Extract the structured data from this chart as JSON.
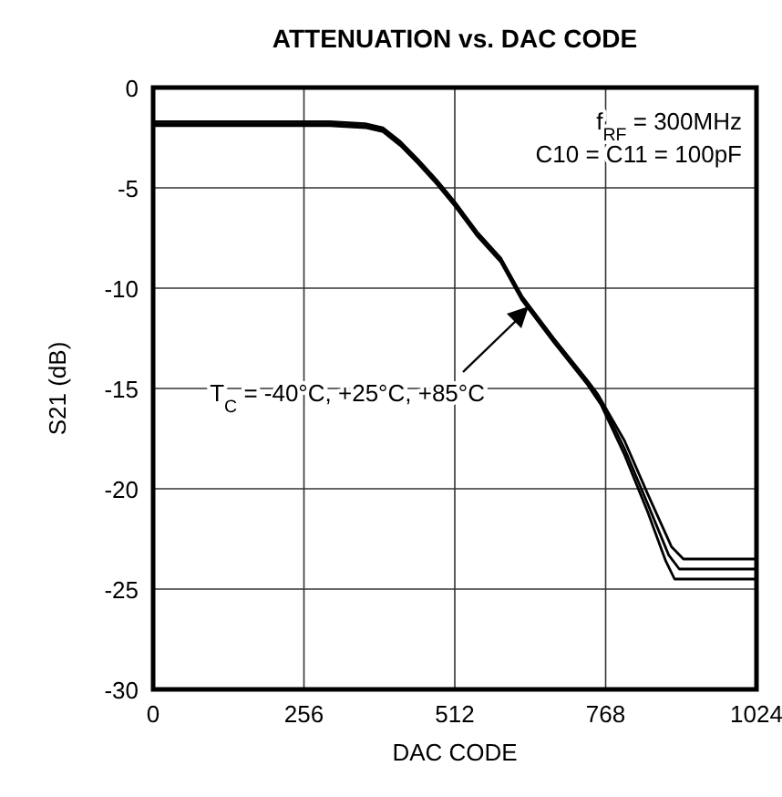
{
  "chart_data": {
    "type": "line",
    "title": "ATTENUATION vs. DAC CODE",
    "xlabel": "DAC CODE",
    "ylabel": "S21 (dB)",
    "xlim": [
      0,
      1024
    ],
    "xticks": [
      0,
      256,
      512,
      768,
      1024
    ],
    "ylim": [
      -30,
      0
    ],
    "yticks": [
      0,
      -5,
      -10,
      -15,
      -20,
      -25,
      -30
    ],
    "grid": true,
    "marker": "none",
    "line_style": "solid",
    "annotations": [
      "f$_{RF}$ = 300MHz",
      "C10 = C11 = 100pF",
      "T$_{C}$ = -40°C, +25°C, +85°C"
    ],
    "series": [
      {
        "color": "#000000",
        "x": [
          0,
          100,
          200,
          300,
          360,
          390,
          420,
          450,
          481,
          512,
          550,
          590,
          626,
          680,
          737,
          760,
          800,
          840,
          870,
          885,
          950,
          1024
        ],
        "values": [
          -1.9,
          -1.9,
          -1.9,
          -1.9,
          -2.0,
          -2.2,
          -2.9,
          -3.8,
          -4.8,
          -5.9,
          -7.4,
          -8.7,
          -10.6,
          -12.7,
          -14.8,
          -15.8,
          -18.3,
          -21.2,
          -23.6,
          -24.5,
          -24.5,
          -24.5
        ]
      },
      {
        "color": "#000000",
        "x": [
          0,
          100,
          200,
          300,
          360,
          390,
          420,
          450,
          481,
          512,
          550,
          590,
          626,
          680,
          737,
          760,
          800,
          840,
          875,
          893,
          950,
          1024
        ],
        "values": [
          -1.8,
          -1.8,
          -1.8,
          -1.8,
          -1.9,
          -2.1,
          -2.8,
          -3.7,
          -4.7,
          -5.8,
          -7.3,
          -8.6,
          -10.5,
          -12.6,
          -14.7,
          -15.6,
          -18.0,
          -20.8,
          -23.3,
          -24.0,
          -24.0,
          -24.0
        ]
      },
      {
        "color": "#000000",
        "x": [
          0,
          100,
          200,
          300,
          360,
          390,
          420,
          450,
          481,
          512,
          550,
          590,
          626,
          680,
          737,
          755,
          800,
          840,
          880,
          900,
          950,
          1024
        ],
        "values": [
          -1.7,
          -1.7,
          -1.7,
          -1.7,
          -1.8,
          -2.0,
          -2.7,
          -3.6,
          -4.6,
          -5.7,
          -7.2,
          -8.5,
          -10.4,
          -12.5,
          -14.6,
          -15.3,
          -17.6,
          -20.3,
          -22.9,
          -23.5,
          -23.5,
          -23.5
        ]
      }
    ]
  }
}
